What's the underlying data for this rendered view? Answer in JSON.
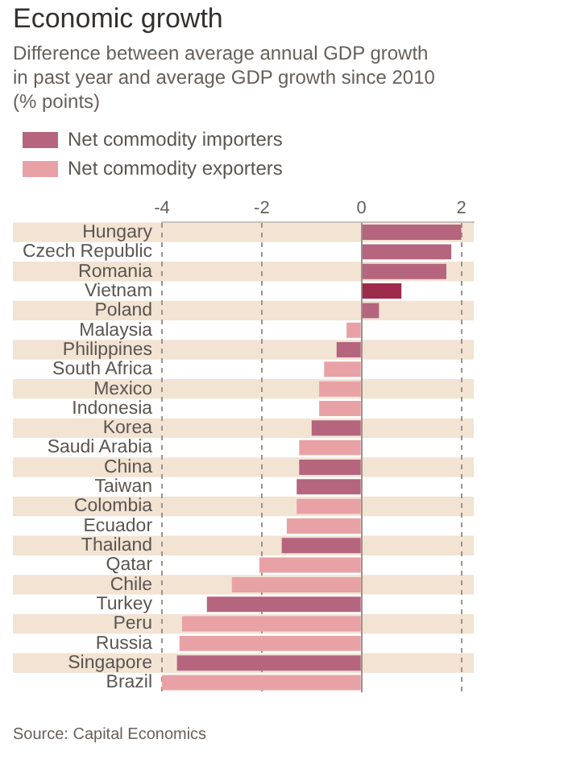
{
  "chart_data": {
    "type": "bar",
    "orientation": "horizontal",
    "title": "Economic growth",
    "subtitle": "Difference between average annual GDP growth in past year and average GDP growth since 2010 (% points)",
    "categories": [
      "Hungary",
      "Czech Republic",
      "Romania",
      "Vietnam",
      "Poland",
      "Malaysia",
      "Philippines",
      "South Africa",
      "Mexico",
      "Indonesia",
      "Korea",
      "Saudi Arabia",
      "China",
      "Taiwan",
      "Colombia",
      "Ecuador",
      "Thailand",
      "Qatar",
      "Chile",
      "Turkey",
      "Peru",
      "Russia",
      "Singapore",
      "Brazil"
    ],
    "series": [
      {
        "name": "Net commodity importers",
        "color": "#b5657e",
        "colors": [
          "#b5657e",
          "#b5657e",
          "#b5657e",
          "#9e2a4b",
          "#b5657e",
          "#b5657e",
          "#b5657e",
          "#b5657e",
          "#b5657e",
          "#b5657e",
          "#b5657e",
          "#b5657e",
          "#b5657e",
          "#b5657e",
          "#b5657e",
          "#b5657e",
          "#b5657e",
          "#b5657e",
          "#b5657e",
          "#b5657e",
          "#b5657e",
          "#b5657e",
          "#b5657e",
          "#b5657e"
        ],
        "values": [
          2.0,
          1.8,
          1.7,
          0.8,
          0.35,
          null,
          -0.5,
          null,
          null,
          null,
          -1.0,
          null,
          -1.25,
          -1.3,
          null,
          null,
          -1.6,
          null,
          null,
          -3.1,
          null,
          null,
          -3.7,
          null
        ]
      },
      {
        "name": "Net commodity exporters",
        "color": "#e8a2a6",
        "values": [
          null,
          null,
          null,
          null,
          null,
          -0.3,
          null,
          -0.75,
          -0.85,
          -0.85,
          null,
          -1.25,
          null,
          null,
          -1.3,
          -1.5,
          null,
          -2.05,
          -2.6,
          null,
          -3.6,
          -3.65,
          null,
          -4.0
        ]
      }
    ],
    "xlim": [
      -4,
      2.25
    ],
    "xticks": [
      -4,
      -2,
      0,
      2
    ],
    "grid": "x",
    "legend": "top left",
    "annotations": [
      "Source: Capital Economics"
    ]
  }
}
